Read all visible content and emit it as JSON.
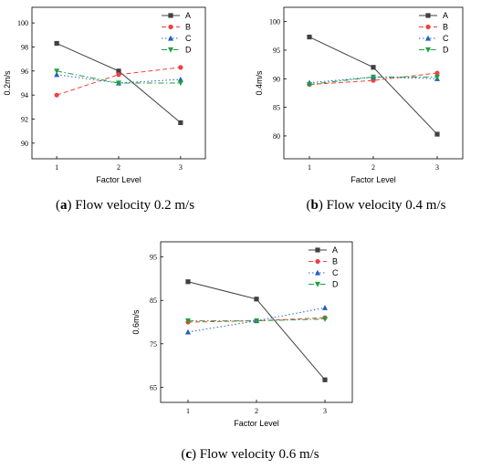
{
  "chart_data": [
    {
      "type": "line",
      "letter": "a",
      "caption": "Flow velocity 0.2 m/s",
      "xlabel": "Factor Level",
      "ylabel": "0.2m/s",
      "x": [
        1,
        2,
        3
      ],
      "xlim": [
        0.6,
        3.4
      ],
      "ylim": [
        88.7,
        101.3
      ],
      "yticks": [
        90,
        92,
        94,
        96,
        98,
        100
      ],
      "legend_position": "top-right",
      "series": [
        {
          "name": "A",
          "values": [
            98.3,
            96.0,
            91.7
          ],
          "color": "#404040",
          "marker": "square",
          "dash": "solid"
        },
        {
          "name": "B",
          "values": [
            94.0,
            95.7,
            96.3
          ],
          "color": "#f04040",
          "marker": "circle",
          "dash": "dashed"
        },
        {
          "name": "C",
          "values": [
            95.7,
            95.0,
            95.3
          ],
          "color": "#2060c0",
          "marker": "triangle-up",
          "dash": "dotted"
        },
        {
          "name": "D",
          "values": [
            96.0,
            95.0,
            95.0
          ],
          "color": "#20a040",
          "marker": "triangle-down",
          "dash": "dashdot"
        }
      ]
    },
    {
      "type": "line",
      "letter": "b",
      "caption": "Flow velocity 0.4 m/s",
      "xlabel": "Factor Level",
      "ylabel": "0.4m/s",
      "x": [
        1,
        2,
        3
      ],
      "xlim": [
        0.6,
        3.4
      ],
      "ylim": [
        76.0,
        102.5
      ],
      "yticks": [
        80,
        85,
        90,
        95,
        100
      ],
      "legend_position": "top-right",
      "series": [
        {
          "name": "A",
          "values": [
            97.3,
            92.0,
            80.3
          ],
          "color": "#404040",
          "marker": "square",
          "dash": "solid"
        },
        {
          "name": "B",
          "values": [
            89.0,
            89.7,
            91.0
          ],
          "color": "#f04040",
          "marker": "circle",
          "dash": "dashed"
        },
        {
          "name": "C",
          "values": [
            89.3,
            90.3,
            90.0
          ],
          "color": "#2060c0",
          "marker": "triangle-up",
          "dash": "dotted"
        },
        {
          "name": "D",
          "values": [
            89.0,
            90.3,
            90.3
          ],
          "color": "#20a040",
          "marker": "triangle-down",
          "dash": "dashdot"
        }
      ]
    },
    {
      "type": "line",
      "letter": "c",
      "caption": "Flow velocity 0.6 m/s",
      "xlabel": "Factor Level",
      "ylabel": "0.6m/s",
      "x": [
        1,
        2,
        3
      ],
      "xlim": [
        0.6,
        3.4
      ],
      "ylim": [
        61.5,
        98.5
      ],
      "yticks": [
        65,
        75,
        85,
        95
      ],
      "legend_position": "top-right",
      "series": [
        {
          "name": "A",
          "values": [
            89.3,
            85.3,
            66.7
          ],
          "color": "#404040",
          "marker": "square",
          "dash": "solid"
        },
        {
          "name": "B",
          "values": [
            80.0,
            80.3,
            81.0
          ],
          "color": "#f04040",
          "marker": "circle",
          "dash": "dashed"
        },
        {
          "name": "C",
          "values": [
            77.7,
            80.3,
            83.3
          ],
          "color": "#2060c0",
          "marker": "triangle-up",
          "dash": "dotted"
        },
        {
          "name": "D",
          "values": [
            80.3,
            80.3,
            80.7
          ],
          "color": "#20a040",
          "marker": "triangle-down",
          "dash": "dashdot"
        }
      ]
    }
  ]
}
